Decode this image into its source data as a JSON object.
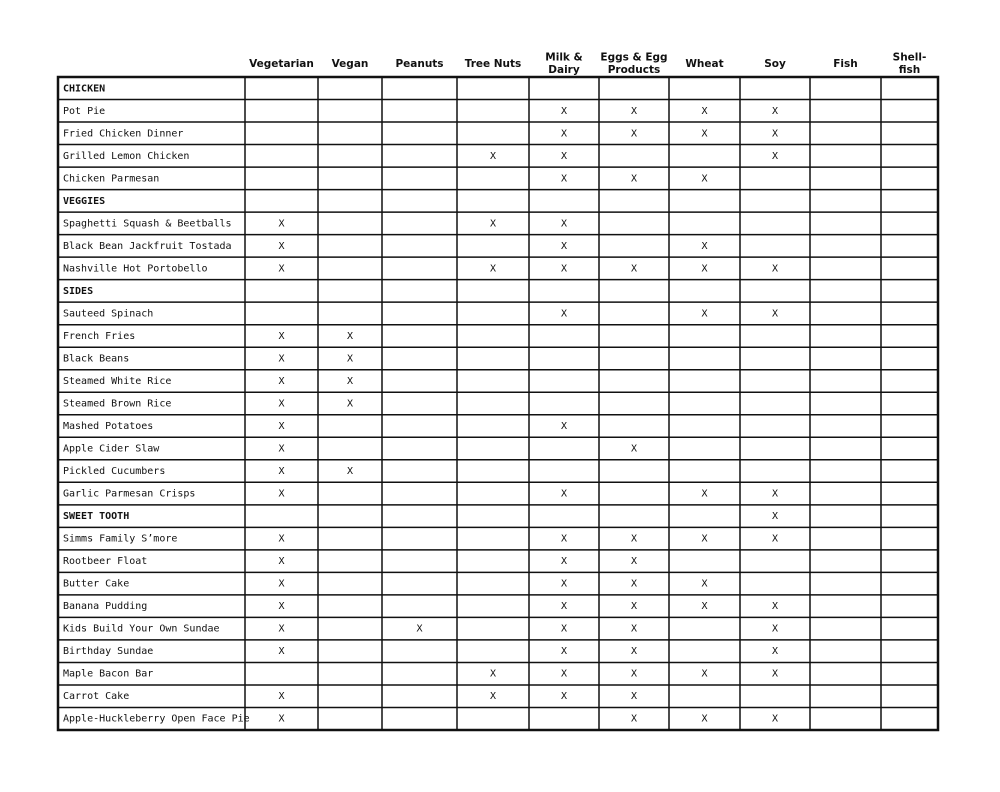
{
  "table": {
    "columns": [
      [
        "Vegetarian"
      ],
      [
        "Vegan"
      ],
      [
        "Peanuts"
      ],
      [
        "Tree Nuts"
      ],
      [
        "Milk &",
        "Dairy"
      ],
      [
        "Eggs & Egg",
        "Products"
      ],
      [
        "Wheat"
      ],
      [
        "Soy"
      ],
      [
        "Fish"
      ],
      [
        "Shell-",
        "fish"
      ]
    ],
    "rows": [
      {
        "label": "CHICKEN",
        "section": true,
        "cells": [
          null,
          null,
          null,
          null,
          null,
          null,
          null,
          null,
          null,
          null
        ]
      },
      {
        "label": "Pot Pie",
        "cells": [
          null,
          null,
          null,
          null,
          "X",
          "X",
          "X",
          "X",
          null,
          null
        ]
      },
      {
        "label": "Fried Chicken Dinner",
        "cells": [
          null,
          null,
          null,
          null,
          "X",
          "X",
          "X",
          "X",
          null,
          null
        ]
      },
      {
        "label": "Grilled Lemon Chicken",
        "cells": [
          null,
          null,
          null,
          "X",
          "X",
          null,
          null,
          "X",
          null,
          null
        ]
      },
      {
        "label": "Chicken Parmesan",
        "cells": [
          null,
          null,
          null,
          null,
          "X",
          "X",
          "X",
          null,
          null,
          null
        ]
      },
      {
        "label": "VEGGIES",
        "section": true,
        "cells": [
          null,
          null,
          null,
          null,
          null,
          null,
          null,
          null,
          null,
          null
        ]
      },
      {
        "label": "Spaghetti Squash & Beetballs",
        "cells": [
          "X",
          null,
          null,
          "X",
          "X",
          null,
          null,
          null,
          null,
          null
        ]
      },
      {
        "label": "Black Bean Jackfruit Tostada",
        "cells": [
          "X",
          null,
          null,
          null,
          "X",
          null,
          "X",
          null,
          null,
          null
        ]
      },
      {
        "label": "Nashville Hot Portobello",
        "cells": [
          "X",
          null,
          null,
          "X",
          "X",
          "X",
          "X",
          "X",
          null,
          null
        ]
      },
      {
        "label": "SIDES",
        "section": true,
        "cells": [
          null,
          null,
          null,
          null,
          null,
          null,
          null,
          null,
          null,
          null
        ]
      },
      {
        "label": "Sauteed Spinach",
        "cells": [
          null,
          null,
          null,
          null,
          "X",
          null,
          "X",
          "X",
          null,
          null
        ]
      },
      {
        "label": "French Fries",
        "cells": [
          "X",
          "X",
          null,
          null,
          null,
          null,
          null,
          null,
          null,
          null
        ]
      },
      {
        "label": "Black Beans",
        "cells": [
          "X",
          "X",
          null,
          null,
          null,
          null,
          null,
          null,
          null,
          null
        ]
      },
      {
        "label": "Steamed White Rice",
        "cells": [
          "X",
          "X",
          null,
          null,
          null,
          null,
          null,
          null,
          null,
          null
        ]
      },
      {
        "label": "Steamed Brown Rice",
        "cells": [
          "X",
          "X",
          null,
          null,
          null,
          null,
          null,
          null,
          null,
          null
        ]
      },
      {
        "label": "Mashed Potatoes",
        "cells": [
          "X",
          null,
          null,
          null,
          "X",
          null,
          null,
          null,
          null,
          null
        ]
      },
      {
        "label": "Apple Cider Slaw",
        "cells": [
          "X",
          null,
          null,
          null,
          null,
          "X",
          null,
          null,
          null,
          null
        ]
      },
      {
        "label": "Pickled Cucumbers",
        "cells": [
          "X",
          "X",
          null,
          null,
          null,
          null,
          null,
          null,
          null,
          null
        ]
      },
      {
        "label": "Garlic Parmesan Crisps",
        "cells": [
          "X",
          null,
          null,
          null,
          "X",
          null,
          "X",
          "X",
          null,
          null
        ]
      },
      {
        "label": "SWEET TOOTH",
        "section": true,
        "cells": [
          null,
          null,
          null,
          null,
          null,
          null,
          null,
          "X",
          null,
          null
        ]
      },
      {
        "label": "Simms Family S’more",
        "cells": [
          "X",
          null,
          null,
          null,
          "X",
          "X",
          "X",
          "X",
          null,
          null
        ]
      },
      {
        "label": "Rootbeer Float",
        "cells": [
          "X",
          null,
          null,
          null,
          "X",
          "X",
          null,
          null,
          null,
          null
        ]
      },
      {
        "label": "Butter Cake",
        "cells": [
          "X",
          null,
          null,
          null,
          "X",
          "X",
          "X",
          null,
          null,
          null
        ]
      },
      {
        "label": "Banana Pudding",
        "cells": [
          "X",
          null,
          null,
          null,
          "X",
          "X",
          "X",
          "X",
          null,
          null
        ]
      },
      {
        "label": "Kids Build Your Own Sundae",
        "cells": [
          "X",
          null,
          "X",
          null,
          "X",
          "X",
          null,
          "X",
          null,
          null
        ]
      },
      {
        "label": "Birthday Sundae",
        "cells": [
          "X",
          null,
          null,
          null,
          "X",
          "X",
          null,
          "X",
          null,
          null
        ]
      },
      {
        "label": "Maple Bacon Bar",
        "cells": [
          null,
          null,
          null,
          "X",
          "X",
          "X",
          "X",
          "X",
          null,
          null
        ]
      },
      {
        "label": "Carrot Cake",
        "cells": [
          "X",
          null,
          null,
          "X",
          "X",
          "X",
          null,
          null,
          null,
          null
        ]
      },
      {
        "label": "Apple-Huckleberry Open Face Pie",
        "cells": [
          "X",
          null,
          null,
          null,
          null,
          "X",
          "X",
          "X",
          null,
          null
        ]
      }
    ]
  }
}
